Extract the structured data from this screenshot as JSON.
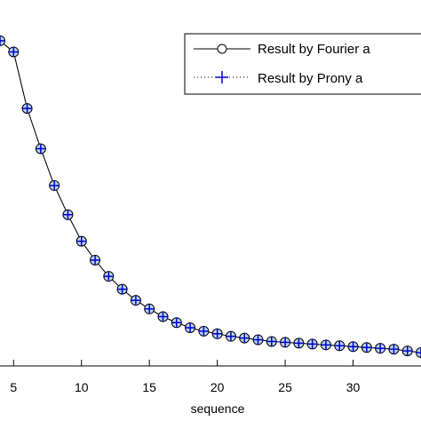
{
  "chart_data": {
    "type": "line",
    "title": "",
    "xlabel": "sequence",
    "ylabel": "",
    "xlim": [
      4,
      35
    ],
    "ylim": [
      0.004,
      0.37
    ],
    "x_ticks": [
      5,
      10,
      15,
      20,
      25,
      30
    ],
    "x_tick_labels": [
      "5",
      "10",
      "15",
      "20",
      "25",
      "30"
    ],
    "grid": false,
    "legend_position": "top-right",
    "x": [
      4,
      5,
      6,
      7,
      8,
      9,
      10,
      11,
      12,
      13,
      14,
      15,
      16,
      17,
      18,
      19,
      20,
      21,
      22,
      23,
      24,
      25,
      26,
      27,
      28,
      29,
      30,
      31,
      32,
      33,
      34,
      35
    ],
    "series": [
      {
        "name": "Result by Fourier a",
        "marker": "circle",
        "line": "solid",
        "color": "#000000",
        "values": [
          0.368,
          0.355,
          0.289,
          0.242,
          0.199,
          0.165,
          0.134,
          0.112,
          0.093,
          0.078,
          0.065,
          0.055,
          0.046,
          0.039,
          0.033,
          0.029,
          0.026,
          0.023,
          0.021,
          0.019,
          0.017,
          0.016,
          0.015,
          0.014,
          0.013,
          0.012,
          0.011,
          0.01,
          0.009,
          0.008,
          0.006,
          0.004
        ]
      },
      {
        "name": "Result by Prony  a",
        "marker": "plus",
        "line": "dotted",
        "color": "#0000cc",
        "values": [
          0.368,
          0.355,
          0.289,
          0.242,
          0.199,
          0.165,
          0.134,
          0.112,
          0.093,
          0.078,
          0.065,
          0.055,
          0.046,
          0.039,
          0.033,
          0.029,
          0.026,
          0.023,
          0.021,
          0.019,
          0.017,
          0.016,
          0.015,
          0.014,
          0.013,
          0.012,
          0.011,
          0.01,
          0.009,
          0.008,
          0.006,
          0.004
        ]
      }
    ],
    "colors": {
      "axis": "#000000",
      "fourier_marker_fill": "#b8d4ea",
      "prony_marker": "#0000cc",
      "background": "#ffffff"
    }
  }
}
